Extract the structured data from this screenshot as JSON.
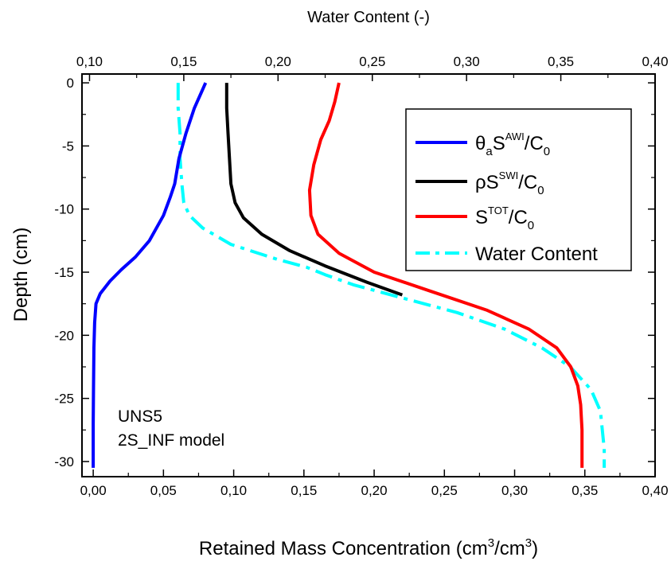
{
  "chart_data": {
    "type": "line",
    "title": "",
    "xlabel": "Retained Mass Concentration (cm",
    "xlabel_sup1": "3",
    "xlabel_mid": "/cm",
    "xlabel_sup2": "3",
    "xlabel_end": ")",
    "x2label": "Water Content (-)",
    "ylabel": "Depth (cm)",
    "xlim": [
      -0.008,
      0.4
    ],
    "x2lim": [
      0.096,
      0.4
    ],
    "ylim": [
      -31.2,
      0.7
    ],
    "xticks": [
      0.0,
      0.05,
      0.1,
      0.15,
      0.2,
      0.25,
      0.3,
      0.35,
      0.4
    ],
    "xtick_labels": [
      "0,00",
      "0,05",
      "0,10",
      "0,15",
      "0,20",
      "0,25",
      "0,30",
      "0,35",
      "0,40"
    ],
    "x2ticks": [
      0.1,
      0.15,
      0.2,
      0.25,
      0.3,
      0.35,
      0.4
    ],
    "x2tick_labels": [
      "0,10",
      "0,15",
      "0,20",
      "0,25",
      "0,30",
      "0,35",
      "0,40"
    ],
    "yticks": [
      0,
      -5,
      -10,
      -15,
      -20,
      -25,
      -30
    ],
    "ytick_labels": [
      "0",
      "-5",
      "-10",
      "-15",
      "-20",
      "-25",
      "-30"
    ],
    "annotations": [
      "UNS5",
      "2S_INF model"
    ],
    "legend_position": "top-right",
    "series": [
      {
        "name": "θ_aS^AWI/C_0",
        "legend": {
          "base": "θ",
          "sub1": "a",
          "mid": "S",
          "sup": "AWI",
          "after": "/C",
          "sub2": "0"
        },
        "color": "#0000ff",
        "style": "solid",
        "axis": "bottom",
        "x": [
          0.08,
          0.072,
          0.066,
          0.061,
          0.058,
          0.055,
          0.05,
          0.04,
          0.03,
          0.02,
          0.012,
          0.005,
          0.002,
          0.001,
          0.0005,
          0.0002,
          0.0,
          0.0
        ],
        "y": [
          0,
          -2,
          -4,
          -6,
          -8,
          -9,
          -10.5,
          -12.5,
          -13.8,
          -14.8,
          -15.7,
          -16.7,
          -17.5,
          -19,
          -21,
          -24,
          -27,
          -30.5
        ]
      },
      {
        "name": "ρS^SWI/C_0",
        "legend": {
          "base": "ρ",
          "sub1": "",
          "mid": "S",
          "sup": "SWI",
          "after": "/C",
          "sub2": "0"
        },
        "color": "#000000",
        "style": "solid",
        "axis": "bottom",
        "x": [
          0.095,
          0.095,
          0.096,
          0.097,
          0.098,
          0.101,
          0.107,
          0.12,
          0.14,
          0.165,
          0.195,
          0.22
        ],
        "y": [
          0,
          -2,
          -4,
          -6,
          -8,
          -9.5,
          -10.7,
          -12,
          -13.3,
          -14.5,
          -15.8,
          -16.8
        ]
      },
      {
        "name": "S^TOT/C_0",
        "legend": {
          "base": "",
          "sub1": "",
          "mid": "S",
          "sup": "TOT",
          "after": "/C",
          "sub2": "0"
        },
        "color": "#ff0000",
        "style": "solid",
        "axis": "bottom",
        "x": [
          0.175,
          0.172,
          0.168,
          0.162,
          0.157,
          0.154,
          0.155,
          0.16,
          0.175,
          0.2,
          0.24,
          0.28,
          0.31,
          0.33,
          0.34,
          0.345,
          0.347,
          0.348,
          0.348,
          0.348
        ],
        "y": [
          0,
          -1.5,
          -3,
          -4.5,
          -6.5,
          -8.5,
          -10.5,
          -12,
          -13.5,
          -15,
          -16.5,
          -18,
          -19.5,
          -21,
          -22.5,
          -24,
          -25.5,
          -27.5,
          -30,
          -30.5
        ]
      },
      {
        "name": "Water Content",
        "legend": {
          "base": "",
          "sub1": "",
          "mid": "Water Content",
          "sup": "",
          "after": "",
          "sub2": ""
        },
        "color": "#00ffff",
        "style": "dashdot",
        "axis": "top",
        "x": [
          0.147,
          0.147,
          0.148,
          0.148,
          0.149,
          0.15,
          0.153,
          0.16,
          0.175,
          0.2,
          0.215,
          0.225,
          0.24,
          0.265,
          0.295,
          0.32,
          0.34,
          0.355,
          0.366,
          0.371,
          0.372,
          0.373,
          0.373
        ],
        "y": [
          0,
          -2,
          -4,
          -6,
          -8,
          -9.5,
          -10.5,
          -11.5,
          -12.8,
          -14,
          -14.6,
          -15.2,
          -16,
          -17,
          -18.2,
          -19.5,
          -21,
          -22.5,
          -24.3,
          -26,
          -27.5,
          -29,
          -30.5
        ]
      }
    ]
  }
}
